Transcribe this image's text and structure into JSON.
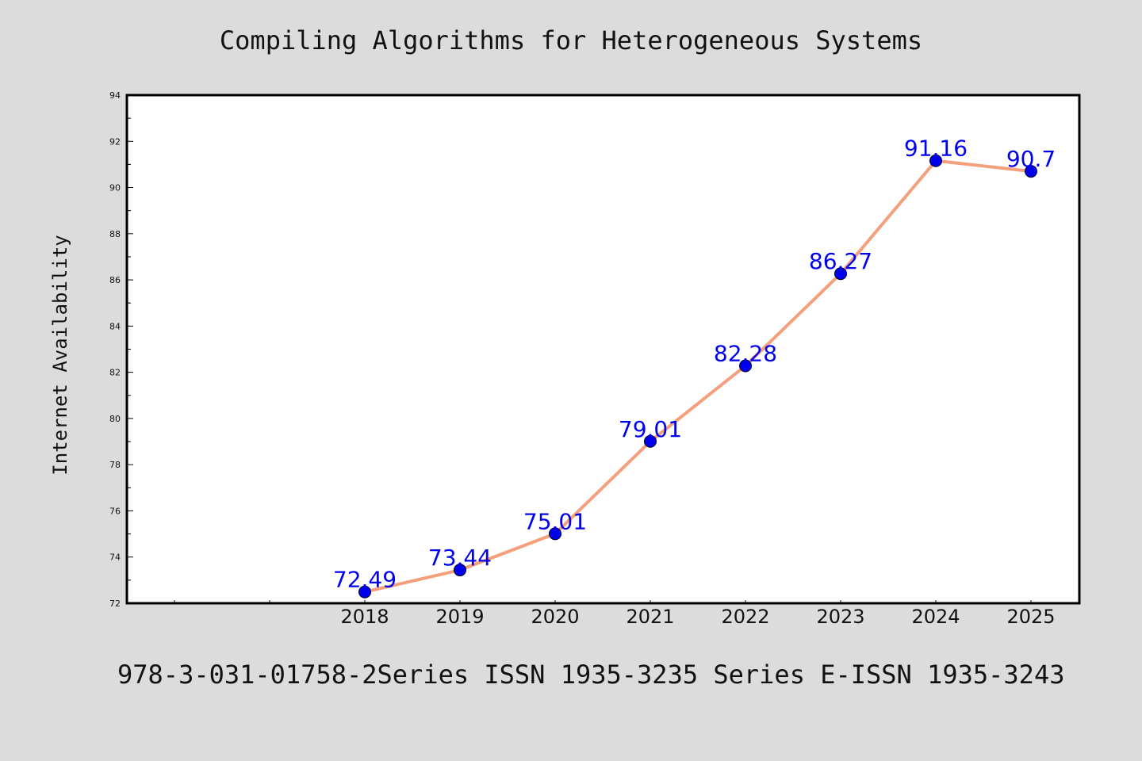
{
  "chart_data": {
    "type": "line",
    "title": "Compiling Algorithms for Heterogeneous Systems",
    "xlabel": "",
    "ylabel": "Internet Availability",
    "categories": [
      "2018",
      "2019",
      "2020",
      "2021",
      "2022",
      "2023",
      "2024",
      "2025"
    ],
    "series": [
      {
        "values": [
          72.49,
          73.44,
          75.01,
          79.01,
          82.28,
          86.27,
          91.16,
          90.7
        ]
      }
    ],
    "data_labels": [
      "72.49",
      "73.44",
      "75.01",
      "79.01",
      "82.28",
      "86.27",
      "91.16",
      "90.7"
    ],
    "ylim": [
      72,
      94
    ],
    "y_ticks": [
      "72",
      "74",
      "76",
      "78",
      "80",
      "82",
      "84",
      "86",
      "88",
      "90",
      "92",
      "94"
    ],
    "grid": false,
    "colors": {
      "line": "#f4a07c",
      "marker": "#0000ee",
      "data_label": "#0000ee",
      "background": "#dcdcdc",
      "plot_bg": "#ffffff"
    }
  },
  "footer": {
    "text": "978-3-031-01758-2Series ISSN 1935-3235 Series E-ISSN 1935-3243"
  }
}
